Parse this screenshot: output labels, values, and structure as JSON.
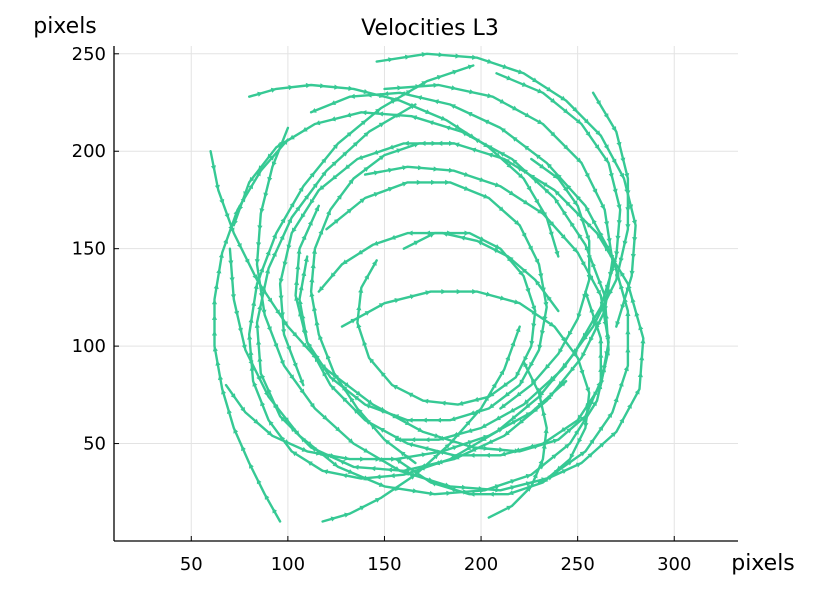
{
  "chart_data": {
    "type": "line",
    "title": "Velocities L3",
    "xlabel": "pixels",
    "ylabel": "pixels",
    "xlim": [
      10,
      333
    ],
    "ylim": [
      0,
      254
    ],
    "xticks": [
      50,
      100,
      150,
      200,
      250,
      300
    ],
    "yticks": [
      50,
      100,
      150,
      200,
      250
    ],
    "grid": true,
    "legend": "none",
    "series_color": "#36c994",
    "series": [
      {
        "x": [
          208,
          232,
          252,
          266,
          272,
          270,
          262,
          248,
          230,
          208,
          184,
          160,
          138,
          118,
          102,
          90,
          82,
          80,
          84,
          94,
          108,
          126,
          148,
          172,
          196
        ],
        "y": [
          240,
          230,
          214,
          194,
          170,
          146,
          120,
          96,
          74,
          56,
          42,
          34,
          32,
          36,
          46,
          62,
          82,
          106,
          132,
          158,
          182,
          204,
          222,
          236,
          244
        ]
      },
      {
        "x": [
          150,
          178,
          206,
          232,
          252,
          264,
          268,
          264,
          252,
          234,
          212,
          186,
          160,
          134,
          112,
          96,
          86,
          84,
          90,
          102,
          120,
          142,
          166
        ],
        "y": [
          232,
          234,
          228,
          214,
          194,
          170,
          144,
          118,
          94,
          72,
          54,
          42,
          36,
          38,
          48,
          64,
          86,
          112,
          140,
          166,
          190,
          210,
          224
        ]
      },
      {
        "x": [
          100,
          92,
          86,
          84,
          88,
          98,
          114,
          134,
          158,
          184,
          210,
          234,
          254,
          268,
          276,
          276,
          268,
          254,
          234,
          210,
          184,
          158,
          132,
          112
        ],
        "y": [
          212,
          192,
          168,
          142,
          116,
          90,
          68,
          50,
          36,
          28,
          26,
          32,
          46,
          66,
          90,
          118,
          146,
          172,
          194,
          212,
          224,
          230,
          228,
          220
        ]
      },
      {
        "x": [
          70,
          72,
          78,
          90,
          106,
          126,
          150,
          176,
          202,
          226,
          246,
          260,
          266,
          264,
          254,
          238,
          216,
          190,
          164,
          138,
          114,
          94,
          80,
          72
        ],
        "y": [
          150,
          124,
          98,
          74,
          54,
          38,
          28,
          24,
          26,
          34,
          50,
          72,
          98,
          126,
          152,
          176,
          196,
          210,
          218,
          220,
          214,
          202,
          184,
          162
        ]
      },
      {
        "x": [
          140,
          162,
          186,
          210,
          232,
          250,
          262,
          266,
          262,
          250,
          232,
          210,
          186,
          162,
          140,
          122,
          110,
          104,
          106,
          116
        ],
        "y": [
          188,
          192,
          190,
          182,
          168,
          148,
          126,
          102,
          80,
          62,
          50,
          44,
          44,
          50,
          62,
          80,
          102,
          126,
          150,
          172
        ]
      },
      {
        "x": [
          120,
          140,
          162,
          184,
          204,
          220,
          230,
          234,
          230,
          220,
          204,
          184,
          162,
          140,
          122,
          110,
          106,
          110
        ],
        "y": [
          160,
          176,
          184,
          184,
          176,
          162,
          142,
          120,
          98,
          80,
          68,
          62,
          62,
          70,
          84,
          102,
          124,
          146
        ]
      },
      {
        "x": [
          160,
          176,
          194,
          210,
          222,
          228,
          226,
          218,
          204,
          188,
          170,
          154,
          142,
          136,
          138,
          146
        ],
        "y": [
          150,
          158,
          158,
          150,
          136,
          118,
          100,
          84,
          74,
          70,
          72,
          80,
          94,
          112,
          130,
          144
        ]
      },
      {
        "x": [
          230,
          252,
          270,
          282,
          284,
          276,
          260,
          238,
          212,
          186,
          160,
          136,
          116,
          102,
          96,
          98,
          108
        ],
        "y": [
          30,
          40,
          56,
          78,
          104,
          132,
          158,
          180,
          196,
          204,
          204,
          196,
          180,
          158,
          132,
          106,
          80
        ]
      },
      {
        "x": [
          60,
          64,
          72,
          84,
          100,
          120,
          144,
          170,
          196,
          220,
          240,
          254,
          262,
          262,
          254
        ],
        "y": [
          200,
          180,
          158,
          134,
          110,
          88,
          70,
          56,
          48,
          46,
          52,
          64,
          82,
          104,
          128
        ]
      },
      {
        "x": [
          146,
          172,
          198,
          222,
          244,
          262,
          274,
          280,
          278,
          270
        ],
        "y": [
          246,
          250,
          248,
          240,
          226,
          208,
          186,
          162,
          136,
          110
        ]
      },
      {
        "x": [
          96,
          88,
          80,
          72,
          66,
          62,
          62,
          66,
          74,
          86,
          100
        ],
        "y": [
          10,
          24,
          40,
          58,
          78,
          100,
          124,
          148,
          170,
          190,
          206
        ]
      },
      {
        "x": [
          258,
          270,
          276,
          276,
          270,
          258,
          242,
          222,
          200,
          178,
          156
        ],
        "y": [
          230,
          210,
          186,
          160,
          134,
          110,
          88,
          70,
          58,
          52,
          52
        ]
      },
      {
        "x": [
          204,
          216,
          226,
          232,
          234,
          230,
          222
        ],
        "y": [
          12,
          18,
          28,
          42,
          58,
          76,
          92
        ]
      },
      {
        "x": [
          118,
          132,
          148,
          166,
          184,
          200,
          212,
          220
        ],
        "y": [
          10,
          14,
          22,
          34,
          50,
          68,
          88,
          110
        ]
      },
      {
        "x": [
          68,
          78,
          92,
          110,
          132,
          156,
          180,
          204,
          226,
          244
        ],
        "y": [
          80,
          66,
          54,
          46,
          42,
          42,
          46,
          54,
          66,
          82
        ]
      },
      {
        "x": [
          128,
          150,
          174,
          198,
          220,
          238,
          250,
          256,
          254,
          246,
          232,
          214,
          194,
          174,
          156
        ],
        "y": [
          110,
          122,
          128,
          128,
          122,
          110,
          94,
          76,
          58,
          42,
          30,
          24,
          24,
          30,
          42
        ]
      },
      {
        "x": [
          80,
          94,
          112,
          134,
          158,
          182,
          204,
          222,
          234,
          240
        ],
        "y": [
          228,
          232,
          234,
          232,
          226,
          216,
          202,
          186,
          166,
          146
        ]
      },
      {
        "x": [
          226,
          240,
          250,
          256,
          256,
          250,
          240,
          226,
          210
        ],
        "y": [
          196,
          186,
          172,
          154,
          134,
          114,
          96,
          80,
          68
        ]
      },
      {
        "x": [
          166,
          150,
          136,
          124,
          116,
          112,
          114,
          122,
          134,
          150,
          168,
          186
        ],
        "y": [
          40,
          52,
          68,
          86,
          106,
          128,
          150,
          170,
          186,
          198,
          204,
          204
        ]
      },
      {
        "x": [
          240,
          228,
          214,
          198,
          180,
          162,
          144,
          128,
          116
        ],
        "y": [
          118,
          134,
          146,
          154,
          158,
          158,
          152,
          142,
          128
        ]
      }
    ]
  }
}
